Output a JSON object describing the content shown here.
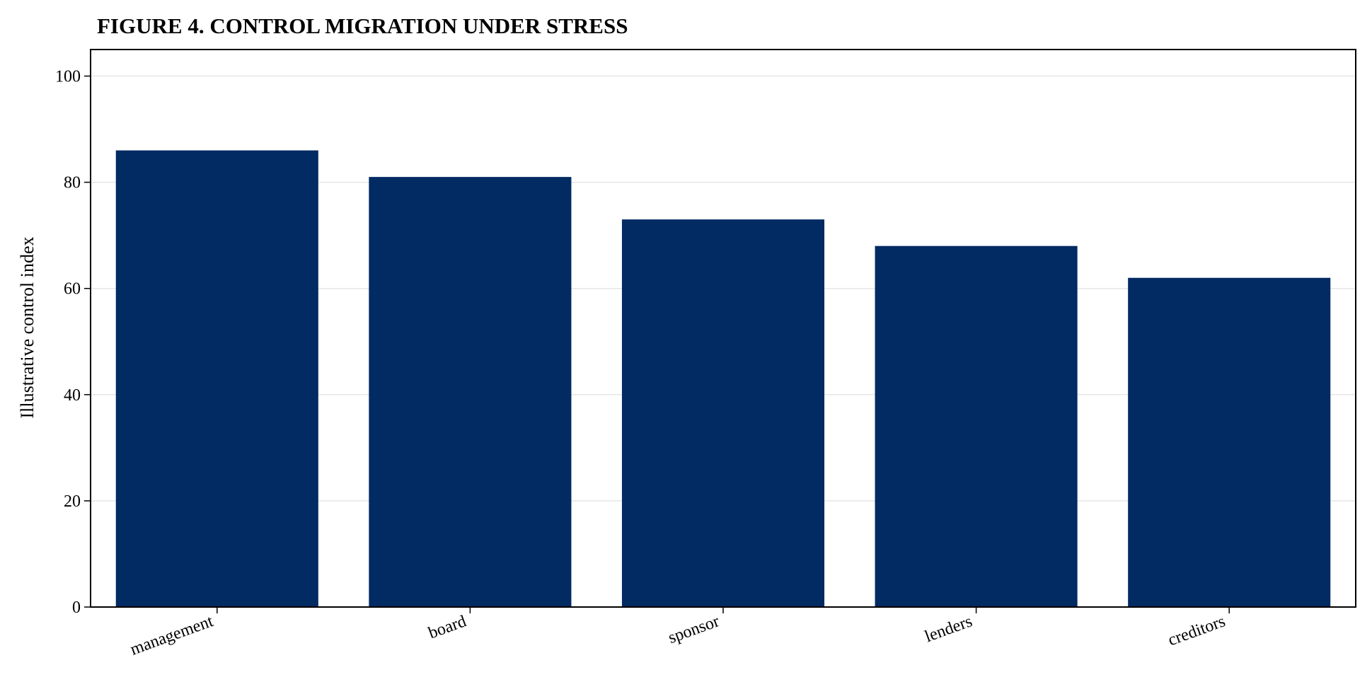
{
  "chart_data": {
    "type": "bar",
    "title": "FIGURE 4. CONTROL MIGRATION UNDER STRESS",
    "xlabel": "",
    "ylabel": "Illustrative control index",
    "categories": [
      "management",
      "board",
      "sponsor",
      "lenders",
      "creditors"
    ],
    "values": [
      86,
      81,
      73,
      68,
      62
    ],
    "ylim": [
      0,
      105
    ],
    "yticks": [
      0,
      20,
      40,
      60,
      80,
      100
    ],
    "grid": "horizontal",
    "legend": "none",
    "bar_color": "#022a63"
  }
}
